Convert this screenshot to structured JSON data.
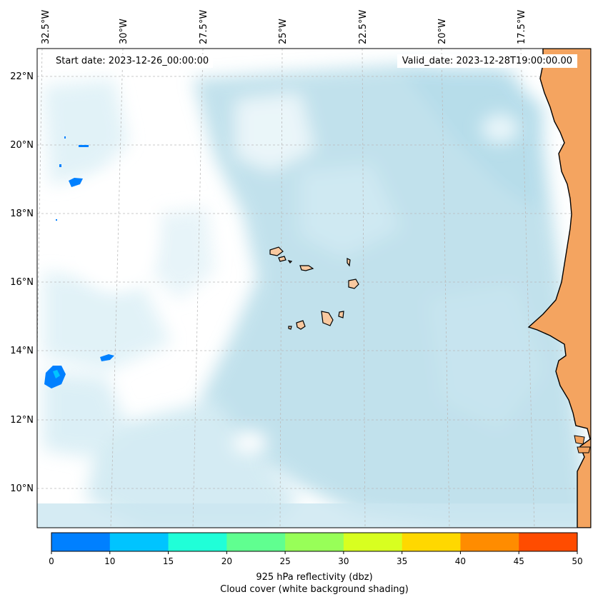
{
  "header": {
    "start_date": "Start date: 2023-12-26_00:00:00",
    "valid_date": "Valid_date: 2023-12-28T19:00:00.00"
  },
  "axes": {
    "lon_labels": [
      "32.5°W",
      "30°W",
      "27.5°W",
      "25°W",
      "22.5°W",
      "20°W",
      "17.5°W"
    ],
    "lat_labels": [
      "22°N",
      "20°N",
      "18°N",
      "16°N",
      "14°N",
      "12°N",
      "10°N"
    ]
  },
  "colorbar": {
    "ticks": [
      "0",
      "10",
      "15",
      "20",
      "25",
      "30",
      "35",
      "40",
      "45",
      "50"
    ],
    "colors": [
      "#0080ff",
      "#00c4ff",
      "#20ffd8",
      "#60ff90",
      "#98ff58",
      "#d8ff20",
      "#ffd800",
      "#ff8c00",
      "#ff4c00"
    ],
    "label_line1": "925 hPa reflectivity (dbz)",
    "label_line2": "Cloud cover (white background shading)"
  },
  "style": {
    "land_color": "#f4a460",
    "island_color": "#f9c9a0",
    "cloud_color": "#add8e6",
    "reflectivity_low": "#0080ff",
    "reflectivity_mid": "#00c4ff"
  }
}
